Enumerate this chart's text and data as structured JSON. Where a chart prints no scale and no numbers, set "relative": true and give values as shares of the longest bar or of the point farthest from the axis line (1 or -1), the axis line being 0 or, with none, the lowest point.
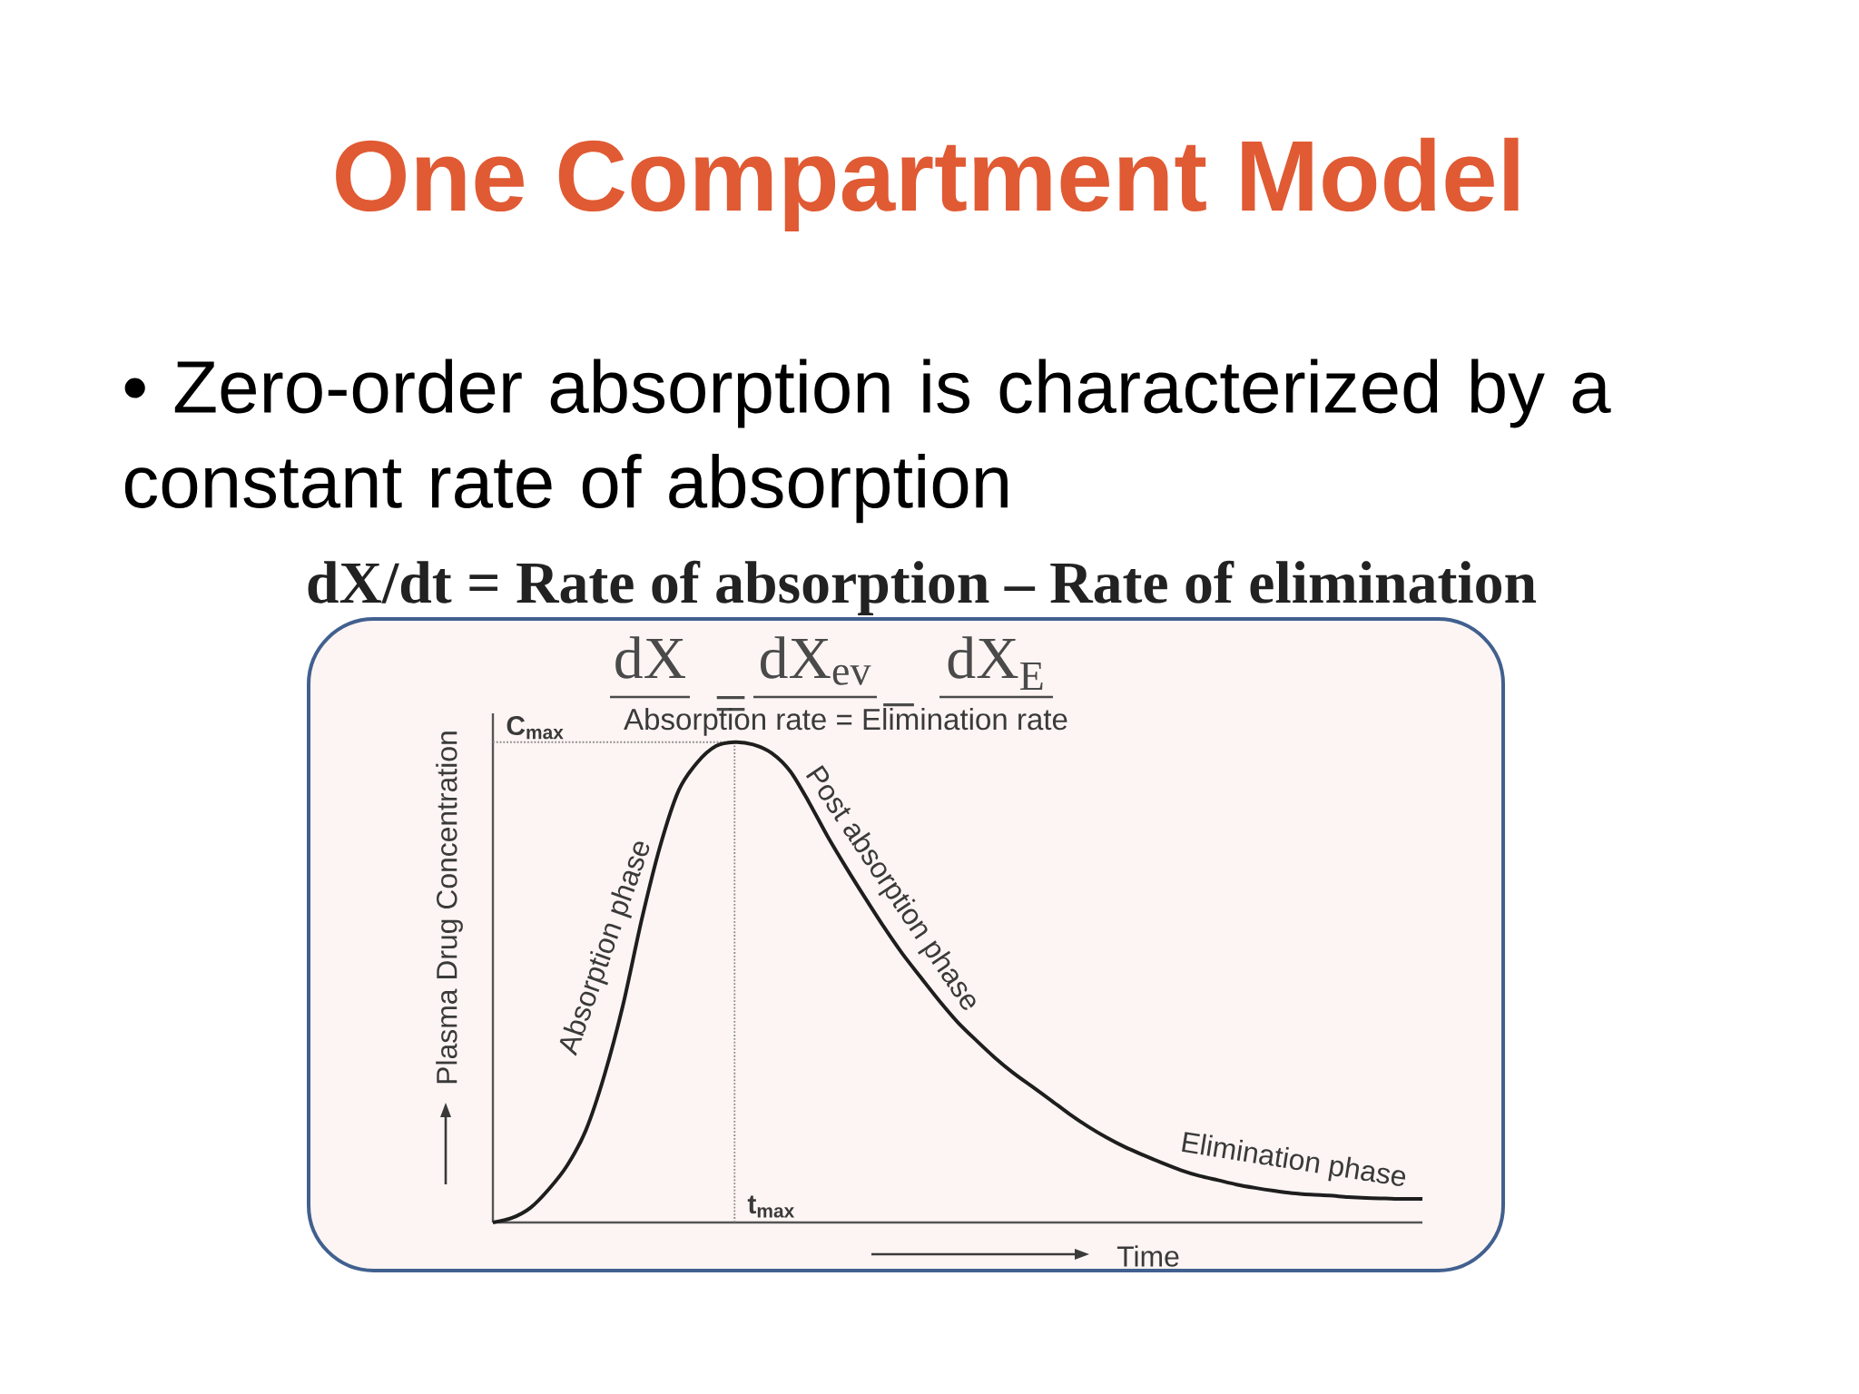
{
  "chart_data": {
    "type": "line",
    "title": "One Compartment Model",
    "subtitle": "• Zero-order absorption is characterized by a constant rate of absorption",
    "annotations": [
      "dX/dt = Rate of absorption – Rate of elimination",
      "dX",
      "=",
      "dX$_{ev}$",
      "–",
      "dX$_{E}$",
      "Absorption rate = Elimination rate",
      "Absorption phase",
      "Post absorption phase",
      "Elimination phase",
      "t$_{max}$"
    ],
    "xlabel": "Time",
    "ylabel": "Plasma Drug Concentration",
    "categories": [
      null,
      null,
      null,
      null,
      null,
      null,
      null,
      null,
      null,
      null,
      null,
      null,
      null,
      null,
      null,
      null,
      null,
      null,
      null,
      null,
      null,
      null,
      null,
      null,
      null,
      null,
      null,
      null,
      null,
      null,
      null,
      null,
      null,
      null,
      null,
      null,
      null,
      null,
      null,
      null,
      null,
      null,
      null,
      null,
      null,
      null,
      null,
      null,
      null,
      null,
      null
    ],
    "series": [
      {
        "color": "#1e1e1e",
        "values": [
          0,
          0.009,
          0.03,
          0.069,
          0.119,
          0.192,
          0.307,
          0.453,
          0.63,
          0.784,
          0.9,
          0.958,
          0.992,
          1,
          0.995,
          0.977,
          0.939,
          0.875,
          0.804,
          0.739,
          0.677,
          0.617,
          0.561,
          0.511,
          0.462,
          0.417,
          0.379,
          0.343,
          0.311,
          0.283,
          0.255,
          0.226,
          0.2,
          0.177,
          0.157,
          0.14,
          0.124,
          0.109,
          0.097,
          0.088,
          0.079,
          0.072,
          0.066,
          0.061,
          0.058,
          0.056,
          0.053,
          0.051,
          0.05,
          0.049,
          0.049
        ]
      }
    ],
    "relative": true,
    "ref_lines": [
      {
        "axis": "y",
        "value": 1,
        "label": "C$_{max}$",
        "line_style": "dotted",
        "color": "#8a8a8a"
      }
    ],
    "marker": "none",
    "line_style": "solid"
  }
}
